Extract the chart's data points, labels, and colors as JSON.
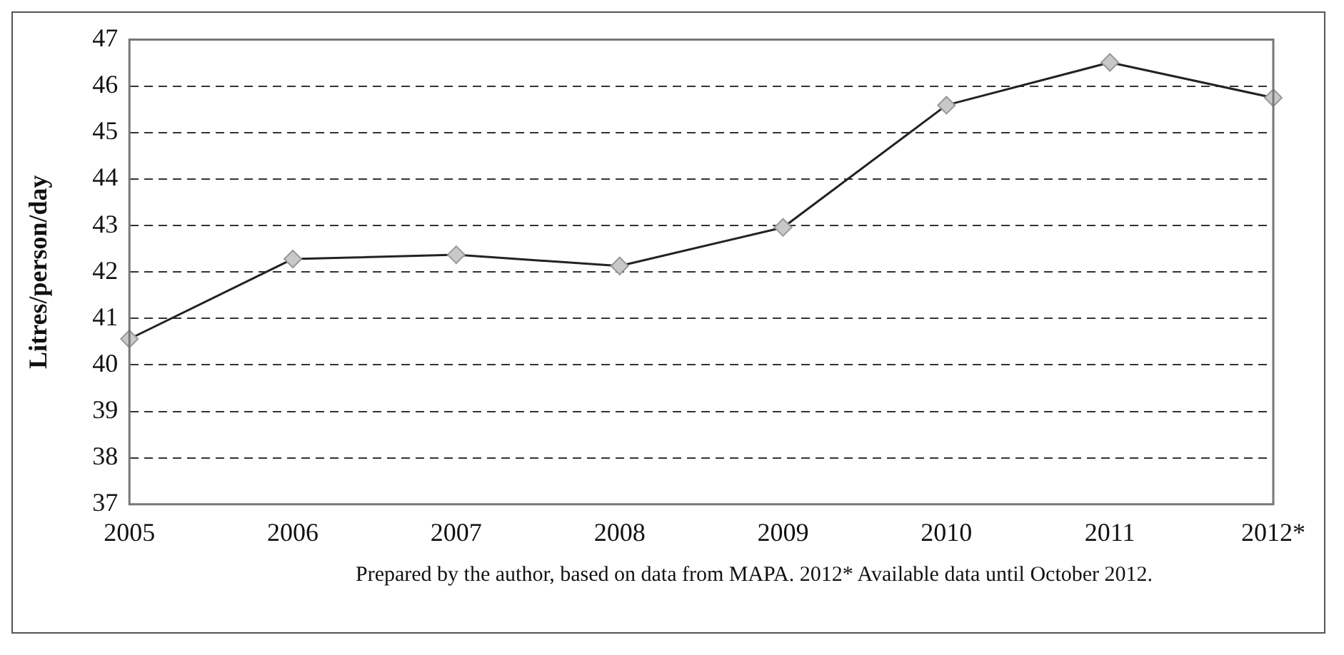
{
  "chart_data": {
    "type": "line",
    "ylabel": "Litres/person/day",
    "categories": [
      "2005",
      "2006",
      "2007",
      "2008",
      "2009",
      "2010",
      "2011",
      "2012*"
    ],
    "series": [
      {
        "color": "#222222",
        "values": [
          40.56,
          42.28,
          42.37,
          42.13,
          42.96,
          45.59,
          46.51,
          45.75
        ]
      }
    ],
    "ylim": [
      37,
      47
    ],
    "yticks": [
      37,
      38,
      39,
      40,
      41,
      42,
      43,
      44,
      45,
      46,
      47
    ],
    "grid": "y",
    "marker": "diamond",
    "line_style": "solid",
    "legend": false,
    "annotations": [
      "Prepared by the author, based on data from MAPA. 2012* Available data until October 2012."
    ]
  }
}
